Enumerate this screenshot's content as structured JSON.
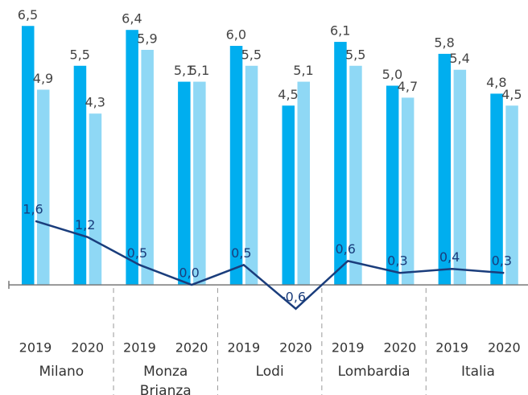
{
  "chart_data": {
    "type": "bar-line",
    "categories": [
      "2019",
      "2020",
      "2019",
      "2020",
      "2019",
      "2020",
      "2019",
      "2020",
      "2019",
      "2020"
    ],
    "groups": [
      "Milano",
      "Monza Brianza",
      "Lodi",
      "Lombardia",
      "Italia"
    ],
    "series": [
      {
        "type": "bar",
        "color": "#00aeef",
        "values": [
          6.5,
          5.5,
          6.4,
          5.1,
          6.0,
          4.5,
          6.1,
          5.0,
          5.8,
          4.8
        ],
        "value_labels": [
          "6,5",
          "5,5",
          "6,4",
          "5,1",
          "6,0",
          "4,5",
          "6,1",
          "5,0",
          "5,8",
          "4,8"
        ]
      },
      {
        "type": "bar",
        "color": "#8fd8f5",
        "values": [
          4.9,
          4.3,
          5.9,
          5.1,
          5.5,
          5.1,
          5.5,
          4.7,
          5.4,
          4.5
        ],
        "value_labels": [
          "4,9",
          "4,3",
          "5,9",
          "5,1",
          "5,5",
          "5,1",
          "5,5",
          "4,7",
          "5,4",
          "4,5"
        ]
      },
      {
        "type": "line",
        "color": "#1a3d7c",
        "values": [
          1.6,
          1.2,
          0.5,
          0.0,
          0.5,
          -0.6,
          0.6,
          0.3,
          0.4,
          0.3
        ],
        "value_labels": [
          "1,6",
          "1,2",
          "0,5",
          "0,0",
          "0,5",
          "-0,6",
          "0,6",
          "0,3",
          "0,4",
          "0,3"
        ]
      }
    ],
    "ylim": [
      -1.2,
      7.0
    ]
  }
}
